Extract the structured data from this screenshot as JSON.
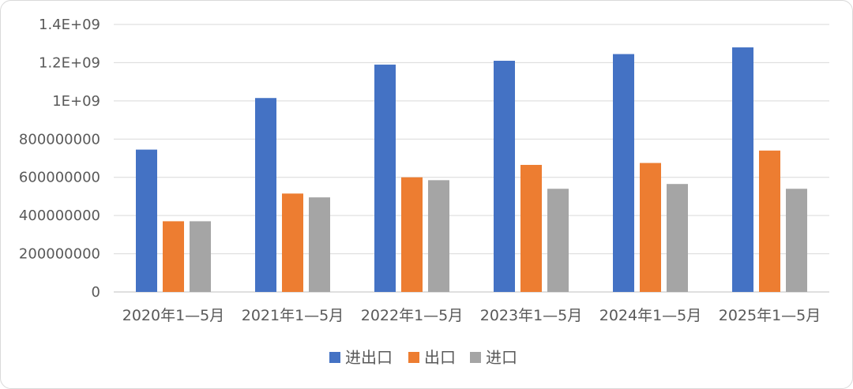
{
  "chart_data": {
    "type": "bar",
    "categories": [
      "2020年1—5月",
      "2021年1—5月",
      "2022年1—5月",
      "2023年1—5月",
      "2024年1—5月",
      "2025年1—5月"
    ],
    "series": [
      {
        "name": "进出口",
        "color": "#4472C4",
        "values": [
          745000000,
          1015000000,
          1190000000,
          1210000000,
          1245000000,
          1280000000
        ]
      },
      {
        "name": "出口",
        "color": "#ED7D31",
        "values": [
          370000000,
          515000000,
          600000000,
          665000000,
          675000000,
          740000000
        ]
      },
      {
        "name": "进口",
        "color": "#A5A5A5",
        "values": [
          370000000,
          495000000,
          585000000,
          540000000,
          565000000,
          540000000
        ]
      }
    ],
    "ylim": [
      0,
      1400000000
    ],
    "yticks": [
      0,
      200000000,
      400000000,
      600000000,
      800000000,
      1000000000,
      1200000000,
      1400000000
    ],
    "ytick_labels": [
      "0",
      "200000000",
      "400000000",
      "600000000",
      "800000000",
      "1E+09",
      "1.2E+09",
      "1.4E+09"
    ],
    "grid": true,
    "legend_position": "bottom",
    "title": "",
    "xlabel": "",
    "ylabel": ""
  }
}
